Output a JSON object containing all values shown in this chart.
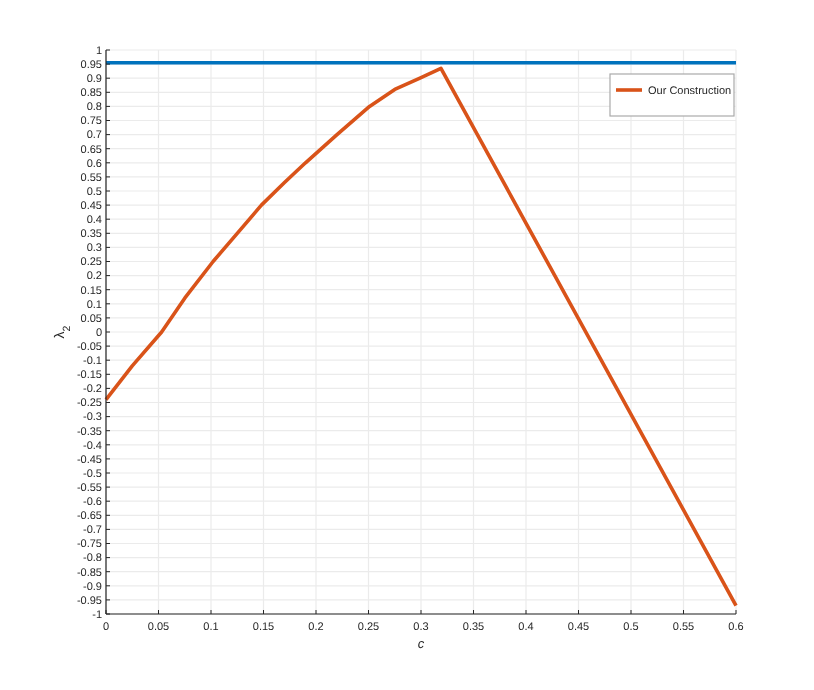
{
  "chart_data": {
    "type": "line",
    "xlabel": "c",
    "ylabel": "λ$_{2}$",
    "xlim": [
      0,
      0.6
    ],
    "xticks": [
      0,
      0.05,
      0.1,
      0.15,
      0.2,
      0.25,
      0.3,
      0.35,
      0.4,
      0.45,
      0.5,
      0.55,
      0.6
    ],
    "ylim": [
      -1,
      1
    ],
    "yticks": [
      -1,
      -0.95,
      -0.9,
      -0.85,
      -0.8,
      -0.75,
      -0.7,
      -0.65,
      -0.6,
      -0.55,
      -0.5,
      -0.45,
      -0.4,
      -0.35,
      -0.3,
      -0.25,
      -0.2,
      -0.15,
      -0.1,
      -0.05,
      0,
      0.05,
      0.1,
      0.15,
      0.2,
      0.25,
      0.3,
      0.35,
      0.4,
      0.45,
      0.5,
      0.55,
      0.6,
      0.65,
      0.7,
      0.75,
      0.8,
      0.85,
      0.9,
      0.95,
      1
    ],
    "grid": true,
    "legend": "top right",
    "line_style": "solid",
    "series": [
      {
        "color": "#0072bd",
        "x": [
          0,
          0.6
        ],
        "values": [
          0.955,
          0.955
        ]
      },
      {
        "name": "Our Construction",
        "color": "#d95319",
        "x": [
          0,
          0.025,
          0.053,
          0.075,
          0.102,
          0.125,
          0.148,
          0.17,
          0.19,
          0.22,
          0.251,
          0.275,
          0.299,
          0.319,
          0.6
        ],
        "values": [
          -0.24,
          -0.12,
          0,
          0.12,
          0.25,
          0.35,
          0.45,
          0.53,
          0.6,
          0.7,
          0.8,
          0.86,
          0.9,
          0.935,
          -0.97
        ]
      }
    ]
  }
}
